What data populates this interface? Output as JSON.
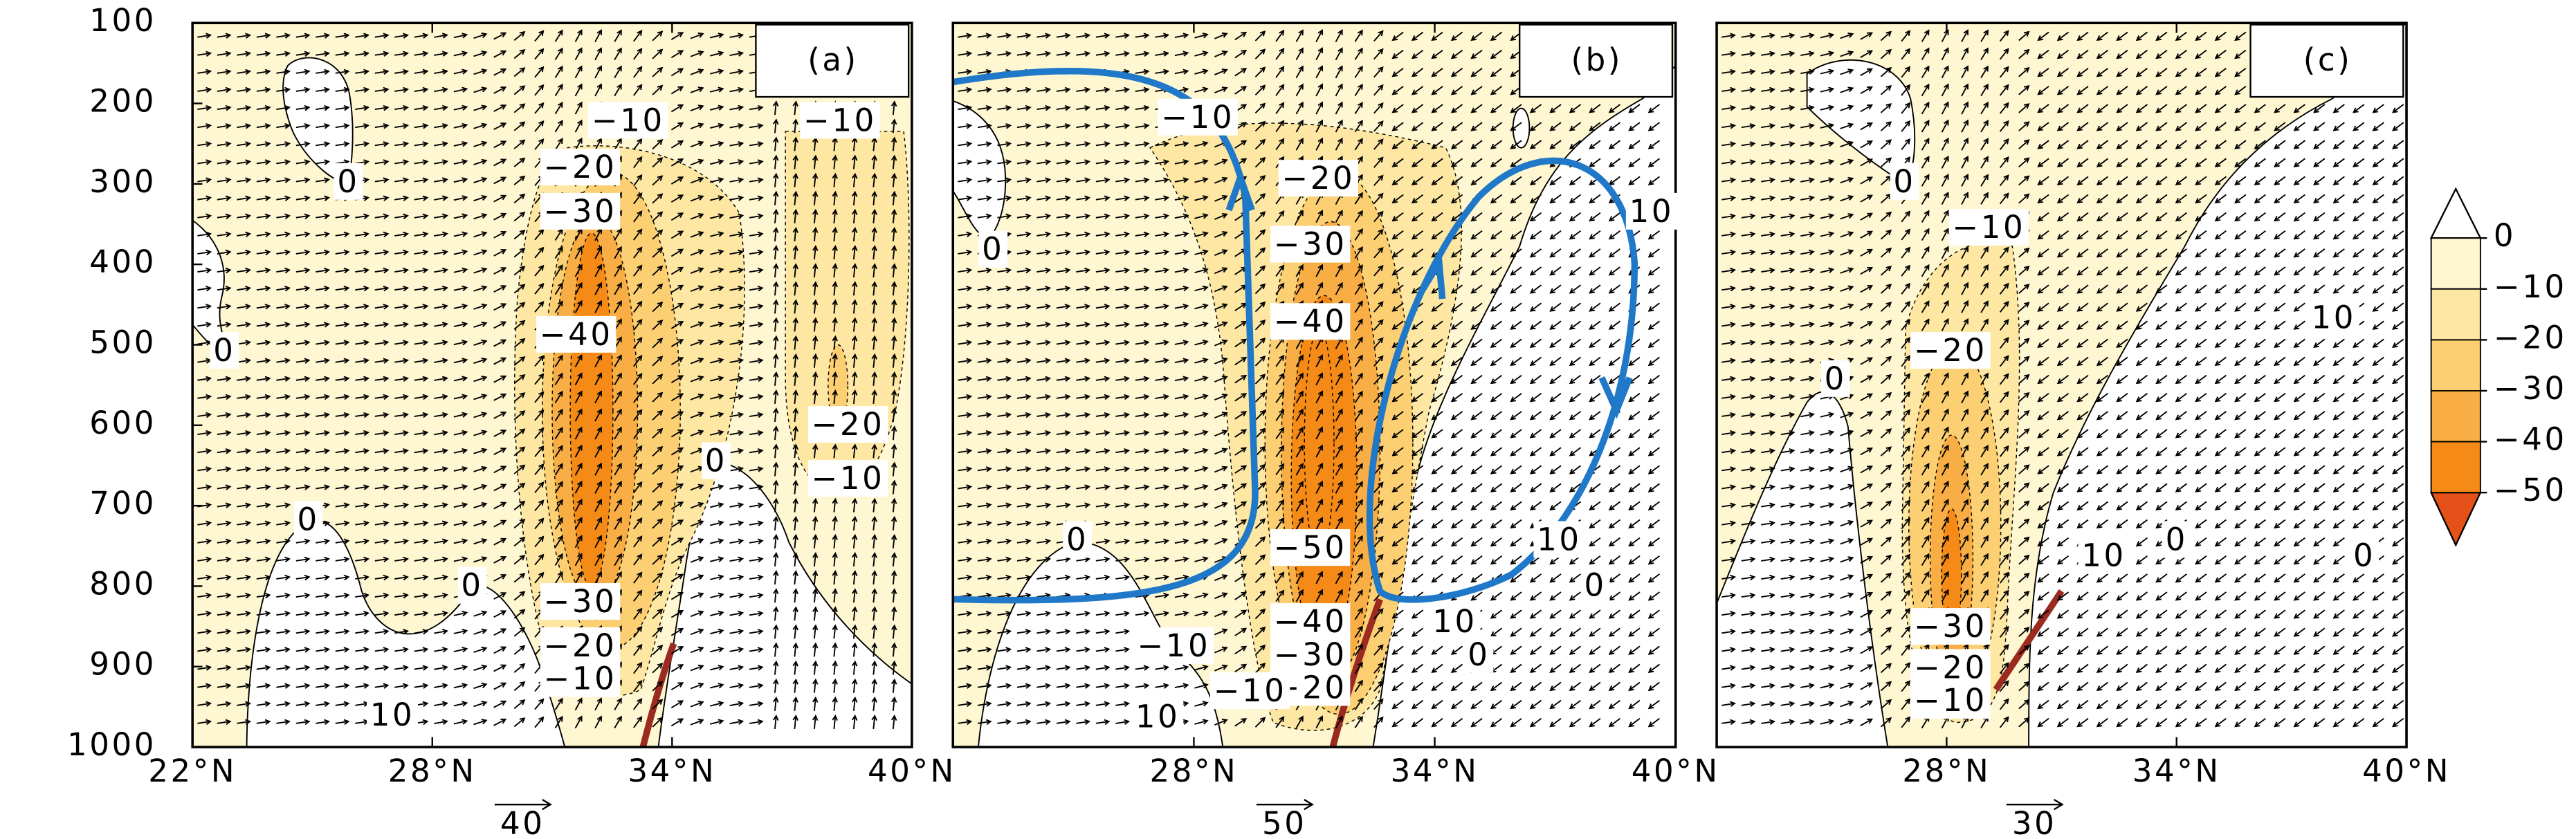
{
  "chart_data": [
    {
      "type": "vector-contour",
      "label": "(a)",
      "ref_vector": 40,
      "xlim": [
        22,
        40
      ],
      "ylim": [
        1000,
        100
      ],
      "xticks": [
        {
          "value": 22,
          "label": "22°N"
        },
        {
          "value": 28,
          "label": "28°N"
        },
        {
          "value": 34,
          "label": "34°N"
        },
        {
          "value": 40,
          "label": "40°N"
        }
      ],
      "yticks": [
        100,
        200,
        300,
        400,
        500,
        600,
        700,
        800,
        900,
        1000
      ],
      "annotations": [
        {
          "text": "−10",
          "lat": 32.9,
          "p": 224
        },
        {
          "text": "−10",
          "lat": 38.2,
          "p": 224
        },
        {
          "text": "−20",
          "lat": 31.7,
          "p": 282
        },
        {
          "text": "−30",
          "lat": 31.7,
          "p": 337
        },
        {
          "text": "−40",
          "lat": 31.6,
          "p": 490
        },
        {
          "text": "−20",
          "lat": 38.4,
          "p": 602
        },
        {
          "text": "−10",
          "lat": 38.4,
          "p": 669
        },
        {
          "text": "−30",
          "lat": 31.7,
          "p": 822
        },
        {
          "text": "−20",
          "lat": 31.7,
          "p": 877
        },
        {
          "text": "−10",
          "lat": 31.7,
          "p": 918
        },
        {
          "text": "0",
          "lat": 25.9,
          "p": 300
        },
        {
          "text": "0",
          "lat": 22.8,
          "p": 510
        },
        {
          "text": "0",
          "lat": 24.9,
          "p": 720
        },
        {
          "text": "0",
          "lat": 29,
          "p": 802
        },
        {
          "text": "0",
          "lat": 35.1,
          "p": 647
        },
        {
          "text": "10",
          "lat": 27,
          "p": 963
        }
      ]
    },
    {
      "type": "vector-contour",
      "label": "(b)",
      "ref_vector": 50,
      "xlim": [
        22,
        40
      ],
      "ylim": [
        1000,
        100
      ],
      "xticks": [
        {
          "value": 28,
          "label": "28°N"
        },
        {
          "value": 34,
          "label": "34°N"
        },
        {
          "value": 40,
          "label": "40°N"
        }
      ],
      "annotations": [
        {
          "text": "−10",
          "lat": 28.1,
          "p": 220
        },
        {
          "text": "−20",
          "lat": 31.1,
          "p": 296
        },
        {
          "text": "−30",
          "lat": 30.9,
          "p": 378
        },
        {
          "text": "−40",
          "lat": 30.9,
          "p": 474
        },
        {
          "text": "−50",
          "lat": 30.9,
          "p": 755
        },
        {
          "text": "−40",
          "lat": 30.9,
          "p": 847
        },
        {
          "text": "−30",
          "lat": 30.9,
          "p": 888
        },
        {
          "text": "−20",
          "lat": 30.9,
          "p": 929
        },
        {
          "text": "−10",
          "lat": 29.4,
          "p": 933
        },
        {
          "text": "−10",
          "lat": 27.5,
          "p": 877
        },
        {
          "text": "10",
          "lat": 27.1,
          "p": 965
        },
        {
          "text": "0",
          "lat": 23,
          "p": 384
        },
        {
          "text": "0",
          "lat": 25.1,
          "p": 745
        },
        {
          "text": "10",
          "lat": 39.4,
          "p": 337
        },
        {
          "text": "10",
          "lat": 37.1,
          "p": 745
        },
        {
          "text": "0",
          "lat": 38,
          "p": 802
        },
        {
          "text": "10",
          "lat": 34.5,
          "p": 847
        },
        {
          "text": "0",
          "lat": 35.1,
          "p": 888
        }
      ]
    },
    {
      "type": "vector-contour",
      "label": "(c)",
      "ref_vector": 30,
      "xlim": [
        22,
        40
      ],
      "ylim": [
        1000,
        100
      ],
      "xticks": [
        {
          "value": 28,
          "label": "28°N"
        },
        {
          "value": 34,
          "label": "34°N"
        },
        {
          "value": 40,
          "label": "40°N"
        }
      ],
      "annotations": [
        {
          "text": "−10",
          "lat": 29.1,
          "p": 357
        },
        {
          "text": "−20",
          "lat": 28.1,
          "p": 510
        },
        {
          "text": "−30",
          "lat": 28.1,
          "p": 853
        },
        {
          "text": "−20",
          "lat": 28.1,
          "p": 904
        },
        {
          "text": "−10",
          "lat": 28.1,
          "p": 945
        },
        {
          "text": "0",
          "lat": 26.9,
          "p": 300
        },
        {
          "text": "0",
          "lat": 25.1,
          "p": 545
        },
        {
          "text": "10",
          "lat": 38.1,
          "p": 469
        },
        {
          "text": "10",
          "lat": 32.1,
          "p": 765
        },
        {
          "text": "0",
          "lat": 34,
          "p": 745
        },
        {
          "text": "0",
          "lat": 38.9,
          "p": 765
        }
      ]
    }
  ],
  "colorbar": {
    "ticks": [
      0,
      {
        "value": -10,
        "label": "−10"
      },
      {
        "value": -20,
        "label": "−20"
      },
      {
        "value": -30,
        "label": "−30"
      },
      {
        "value": -40,
        "label": "−40"
      },
      {
        "value": -50,
        "label": "−50"
      }
    ],
    "colors": [
      "#fff7d1",
      "#fde7a2",
      "#fccf73",
      "#f9ae45",
      "#f58a16"
    ],
    "extend_colors": [
      "#ffffff",
      "#e4521a"
    ]
  }
}
